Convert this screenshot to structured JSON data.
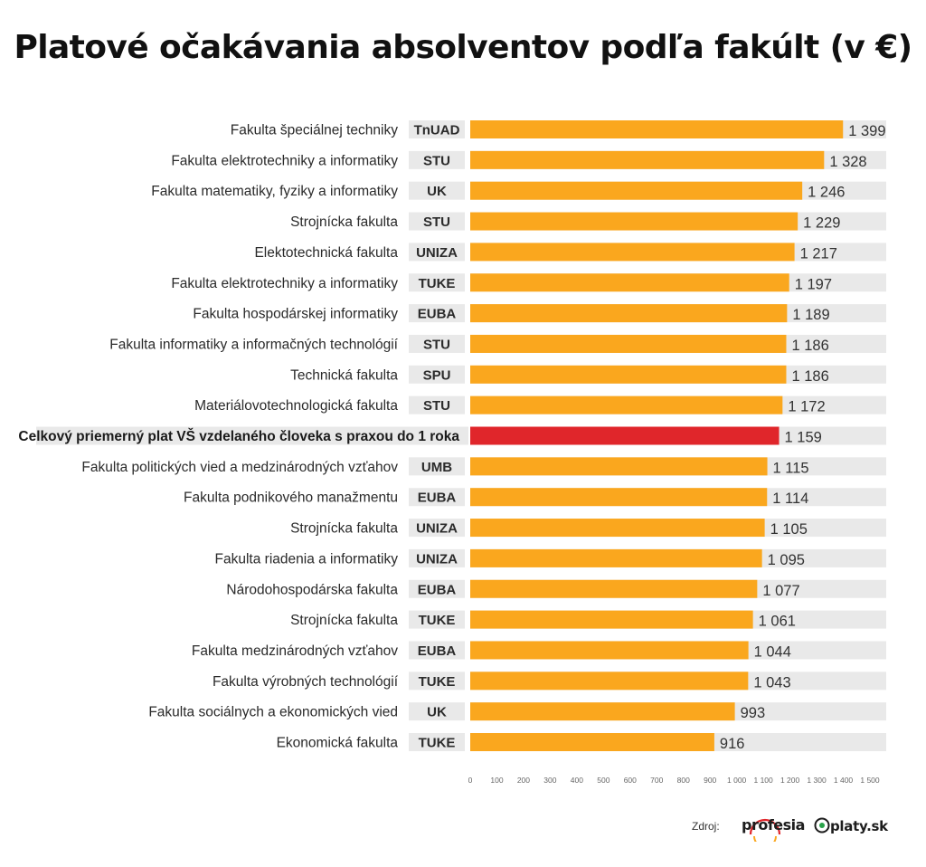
{
  "title": "Platové očakávania absolventov podľa fakúlt (v €)",
  "source": {
    "label": "Zdroj:",
    "logos": [
      "profesia",
      "platy.sk"
    ]
  },
  "colors": {
    "bar": "#faa71e",
    "highlight": "#e0262b",
    "track": "#e9e9e9",
    "abbr_bg": "#e9e9e9"
  },
  "chart_data": {
    "type": "bar",
    "orientation": "horizontal",
    "title": "Platové očakávania absolventov podľa fakúlt (v €)",
    "xlim": [
      0,
      1500
    ],
    "xticks": [
      0,
      100,
      200,
      300,
      400,
      500,
      600,
      700,
      800,
      900,
      1000,
      1100,
      1200,
      1300,
      1400,
      1500
    ],
    "xtick_labels": [
      "0",
      "100",
      "200",
      "300",
      "400",
      "500",
      "600",
      "700",
      "800",
      "900",
      "1 000",
      "1 100",
      "1 200",
      "1 300",
      "1 400",
      "1 500"
    ],
    "rows": [
      {
        "faculty": "Fakulta špeciálnej techniky",
        "school": "TnUAD",
        "value": 1399,
        "value_label": "1 399",
        "highlight": false
      },
      {
        "faculty": "Fakulta elektrotechniky a informatiky",
        "school": "STU",
        "value": 1328,
        "value_label": "1 328",
        "highlight": false
      },
      {
        "faculty": "Fakulta matematiky, fyziky a informatiky",
        "school": "UK",
        "value": 1246,
        "value_label": "1 246",
        "highlight": false
      },
      {
        "faculty": "Strojnícka fakulta",
        "school": "STU",
        "value": 1229,
        "value_label": "1 229",
        "highlight": false
      },
      {
        "faculty": "Elektotechnická fakulta",
        "school": "UNIZA",
        "value": 1217,
        "value_label": "1 217",
        "highlight": false
      },
      {
        "faculty": "Fakulta elektrotechniky a informatiky",
        "school": "TUKE",
        "value": 1197,
        "value_label": "1 197",
        "highlight": false
      },
      {
        "faculty": "Fakulta hospodárskej informatiky",
        "school": "EUBA",
        "value": 1189,
        "value_label": "1 189",
        "highlight": false
      },
      {
        "faculty": "Fakulta informatiky a informačných technológií",
        "school": "STU",
        "value": 1186,
        "value_label": "1 186",
        "highlight": false
      },
      {
        "faculty": "Technická fakulta",
        "school": "SPU",
        "value": 1186,
        "value_label": "1 186",
        "highlight": false
      },
      {
        "faculty": "Materiálovotechnologická fakulta",
        "school": "STU",
        "value": 1172,
        "value_label": "1 172",
        "highlight": false
      },
      {
        "faculty": "Celkový priemerný plat VŠ vzdelaného človeka s praxou do 1 roka",
        "school": "",
        "value": 1159,
        "value_label": "1 159",
        "highlight": true
      },
      {
        "faculty": "Fakulta politických vied a medzinárodných vzťahov",
        "school": "UMB",
        "value": 1115,
        "value_label": "1 115",
        "highlight": false
      },
      {
        "faculty": "Fakulta podnikového manažmentu",
        "school": "EUBA",
        "value": 1114,
        "value_label": "1 114",
        "highlight": false
      },
      {
        "faculty": "Strojnícka fakulta",
        "school": "UNIZA",
        "value": 1105,
        "value_label": "1 105",
        "highlight": false
      },
      {
        "faculty": "Fakulta riadenia a informatiky",
        "school": "UNIZA",
        "value": 1095,
        "value_label": "1 095",
        "highlight": false
      },
      {
        "faculty": "Národohospodárska fakulta",
        "school": "EUBA",
        "value": 1077,
        "value_label": "1 077",
        "highlight": false
      },
      {
        "faculty": "Strojnícka fakulta",
        "school": "TUKE",
        "value": 1061,
        "value_label": "1 061",
        "highlight": false
      },
      {
        "faculty": "Fakulta medzinárodných vzťahov",
        "school": "EUBA",
        "value": 1044,
        "value_label": "1 044",
        "highlight": false
      },
      {
        "faculty": "Fakulta výrobných technológií",
        "school": "TUKE",
        "value": 1043,
        "value_label": "1 043",
        "highlight": false
      },
      {
        "faculty": "Fakulta sociálnych a ekonomických vied",
        "school": "UK",
        "value": 993,
        "value_label": "993",
        "highlight": false
      },
      {
        "faculty": "Ekonomická fakulta",
        "school": "TUKE",
        "value": 916,
        "value_label": "916",
        "highlight": false
      }
    ]
  }
}
